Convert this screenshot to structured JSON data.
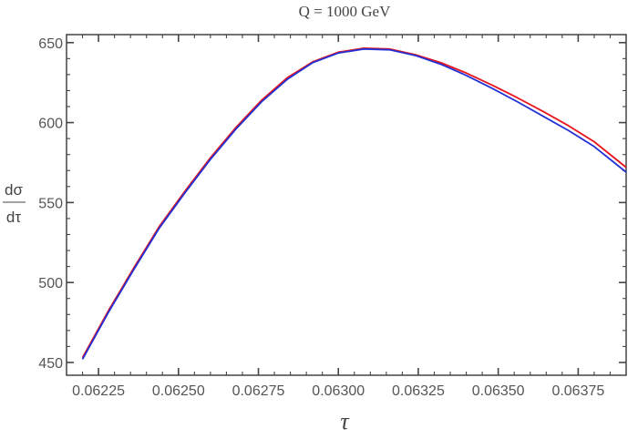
{
  "chart_data": {
    "type": "line",
    "title": "Q = 1000 GeV",
    "xlabel": "τ",
    "ylabel_num": "dσ",
    "ylabel_den": "dτ",
    "xlim": [
      0.06215,
      0.0639
    ],
    "ylim": [
      442,
      655
    ],
    "xticks": [
      0.06225,
      0.0625,
      0.06275,
      0.063,
      0.06325,
      0.0635,
      0.06375
    ],
    "xtick_labels": [
      "0.06225",
      "0.06250",
      "0.06275",
      "0.06300",
      "0.06325",
      "0.06350",
      "0.06375"
    ],
    "yticks": [
      450,
      500,
      550,
      600,
      650
    ],
    "ytick_labels": [
      "450",
      "500",
      "550",
      "600",
      "650"
    ],
    "grid": false,
    "series": [
      {
        "color": "#e8141c",
        "x": [
          0.0622,
          0.06228,
          0.06236,
          0.06244,
          0.06252,
          0.0626,
          0.06268,
          0.06276,
          0.06284,
          0.06292,
          0.063,
          0.06308,
          0.06316,
          0.06324,
          0.06332,
          0.0634,
          0.06348,
          0.06356,
          0.06364,
          0.06372,
          0.0638,
          0.0639
        ],
        "values": [
          453,
          482,
          509,
          535,
          557,
          578,
          597,
          614,
          628,
          638,
          644,
          646.5,
          646,
          642.5,
          637.5,
          631,
          623.5,
          615.5,
          607,
          598,
          588,
          572
        ]
      },
      {
        "color": "#2231d6",
        "x": [
          0.0622,
          0.06228,
          0.06236,
          0.06244,
          0.06252,
          0.0626,
          0.06268,
          0.06276,
          0.06284,
          0.06292,
          0.063,
          0.06308,
          0.06316,
          0.06324,
          0.06332,
          0.0634,
          0.06348,
          0.06356,
          0.06364,
          0.06372,
          0.0638,
          0.0639
        ],
        "values": [
          452,
          481,
          508,
          534,
          556,
          577,
          596,
          613,
          627,
          637.5,
          643.5,
          646,
          645.5,
          642,
          636.5,
          629.5,
          621.5,
          613,
          604,
          595,
          585,
          569
        ]
      }
    ]
  }
}
